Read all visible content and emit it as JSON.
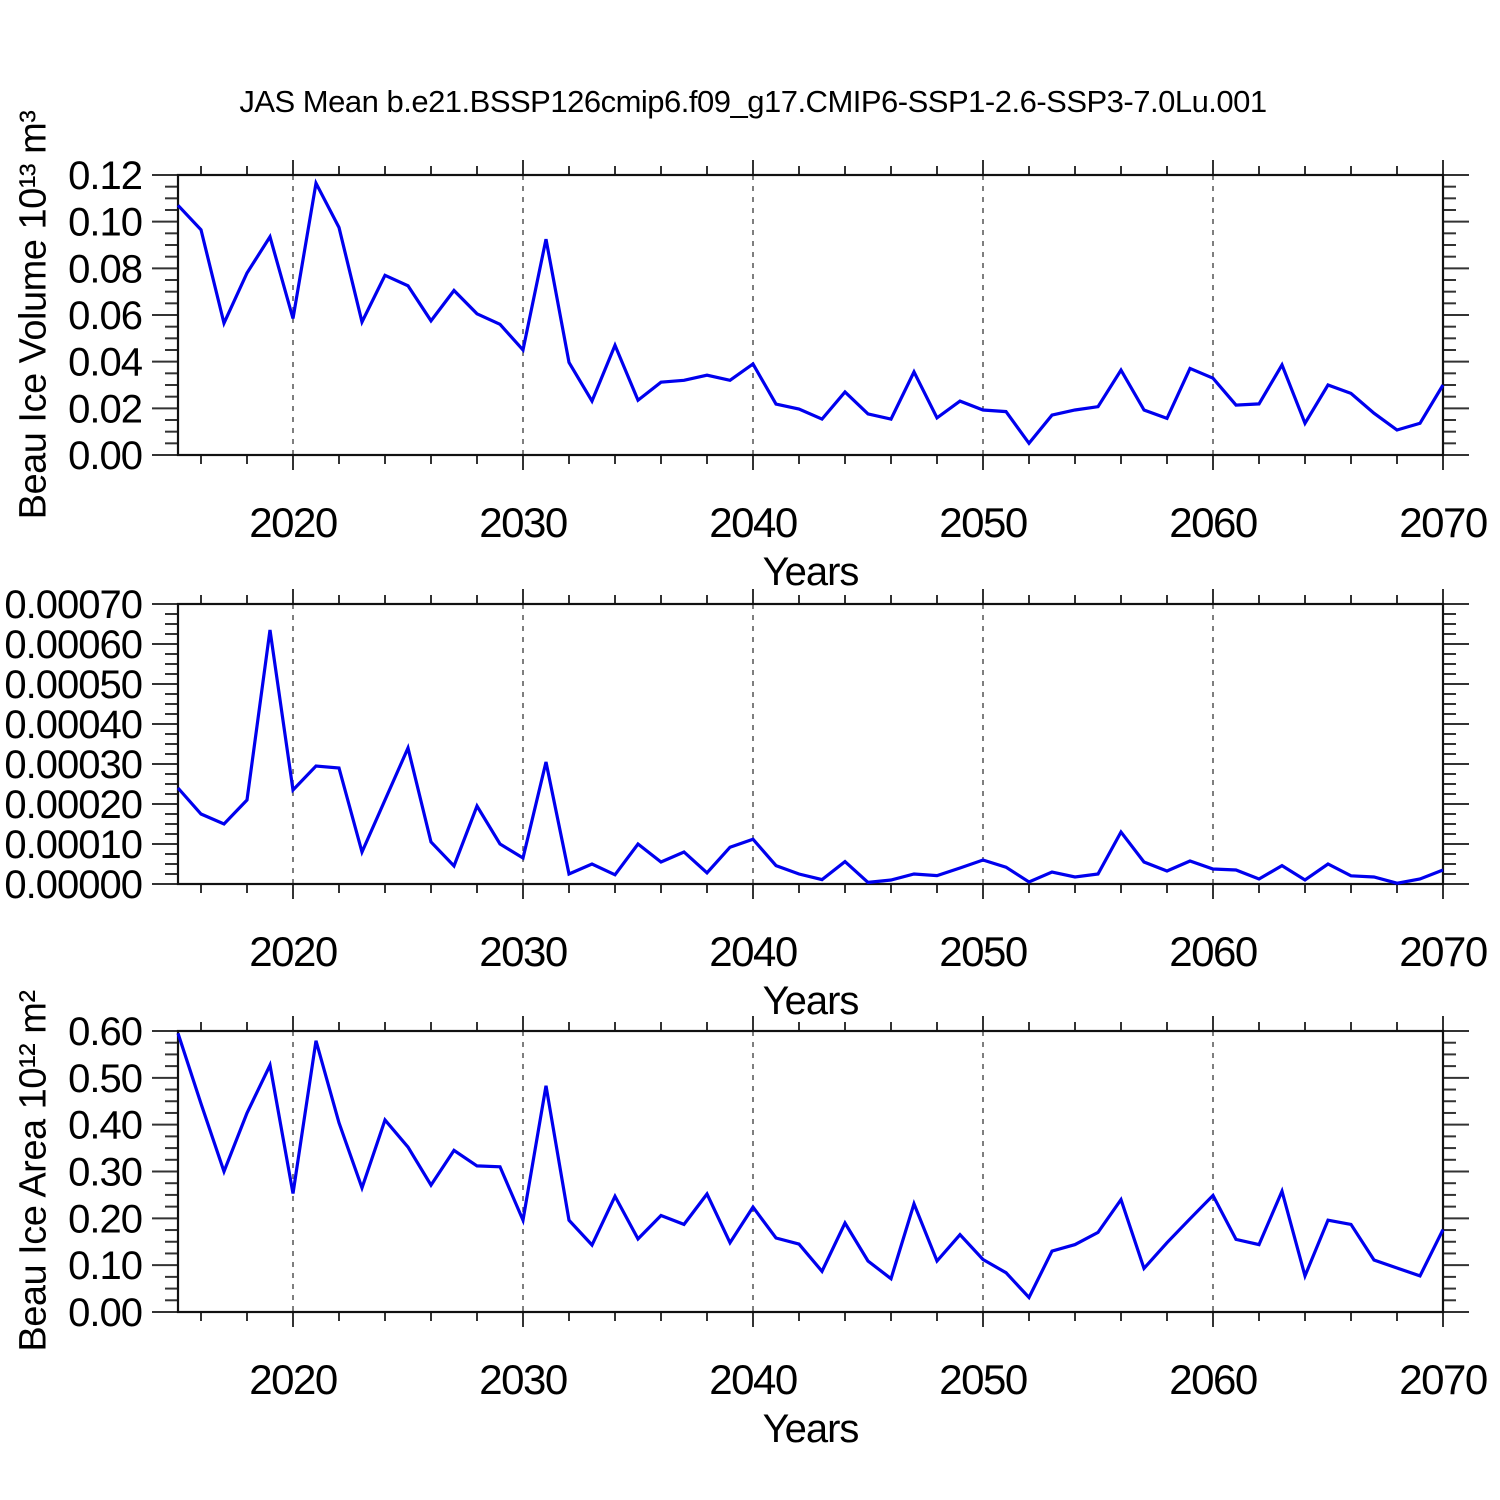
{
  "title": "JAS Mean b.e21.BSSP126cmip6.f09_g17.CMIP6-SSP1-2.6-SSP3-7.0Lu.001",
  "chart_data": {
    "type": "line",
    "title": "JAS Mean b.e21.BSSP126cmip6.f09_g17.CMIP6-SSP1-2.6-SSP3-7.0Lu.001",
    "line_color": "#0000ee",
    "gridline_color": "#555555",
    "grid": "vertical-dashed-at-decades",
    "legend_position": "none",
    "x": {
      "start": 2015,
      "end": 2070,
      "ticks": [
        2020,
        2030,
        2040,
        2050,
        2060,
        2070
      ],
      "tick_labels": [
        "2020",
        "2030",
        "2040",
        "2050",
        "2060",
        "2070"
      ],
      "minor_step": 2,
      "gridlines": [
        2020,
        2030,
        2040,
        2050,
        2060
      ]
    },
    "panels": [
      {
        "name": "beau-ice-volume",
        "ylabel": "Beau Ice Volume 10¹³ m³",
        "xlabel": "Years",
        "ylim": [
          0,
          0.12
        ],
        "ytick_step": 0.02,
        "ytick_labels": [
          "0.00",
          "0.02",
          "0.04",
          "0.06",
          "0.08",
          "0.10",
          "0.12"
        ],
        "values": [
          0.107,
          0.0965,
          0.0565,
          0.078,
          0.0935,
          0.0585,
          0.1165,
          0.0975,
          0.057,
          0.077,
          0.0725,
          0.0575,
          0.0705,
          0.0605,
          0.056,
          0.045,
          0.0925,
          0.0397,
          0.0231,
          0.047,
          0.0235,
          0.0312,
          0.032,
          0.0342,
          0.032,
          0.039,
          0.0218,
          0.0197,
          0.0154,
          0.027,
          0.0176,
          0.0154,
          0.0356,
          0.0159,
          0.0231,
          0.0193,
          0.0186,
          0.005,
          0.0171,
          0.0193,
          0.0207,
          0.0364,
          0.0193,
          0.0157,
          0.0371,
          0.0329,
          0.0214,
          0.0219,
          0.0386,
          0.0136,
          0.03,
          0.0264,
          0.0179,
          0.0107,
          0.0136,
          0.03
        ]
      },
      {
        "name": "beau-ice-middle-series",
        "ylabel": "",
        "xlabel": "Years",
        "ylim": [
          0,
          0.0007
        ],
        "ytick_step": 0.0001,
        "ytick_labels": [
          "0.00000",
          "0.00010",
          "0.00020",
          "0.00030",
          "0.00040",
          "0.00050",
          "0.00060",
          "0.00070"
        ],
        "values": [
          0.00024,
          0.000175,
          0.00015,
          0.00021,
          0.000635,
          0.000235,
          0.000295,
          0.00029,
          8e-05,
          0.00021,
          0.00034,
          0.000105,
          4.5e-05,
          0.000195,
          0.0001,
          6.5e-05,
          0.000305,
          2.5e-05,
          5e-05,
          2.3e-05,
          0.0001,
          5.5e-05,
          8e-05,
          2.8e-05,
          9.2e-05,
          0.000112,
          4.6e-05,
          2.5e-05,
          1.1e-05,
          5.6e-05,
          4e-06,
          1e-05,
          2.5e-05,
          2.1e-05,
          4e-05,
          6e-05,
          4.2e-05,
          5e-06,
          3e-05,
          1.75e-05,
          2.5e-05,
          0.00013,
          5.5e-05,
          3.25e-05,
          5.75e-05,
          3.75e-05,
          3.5e-05,
          1.25e-05,
          4.6e-05,
          1e-05,
          5e-05,
          2.05e-05,
          1.75e-05,
          2e-06,
          1.25e-05,
          3.5e-05
        ]
      },
      {
        "name": "beau-ice-area",
        "ylabel": "Beau Ice Area 10¹² m²",
        "xlabel": "Years",
        "ylim": [
          0,
          0.6
        ],
        "ytick_step": 0.1,
        "ytick_labels": [
          "0.00",
          "0.10",
          "0.20",
          "0.30",
          "0.40",
          "0.50",
          "0.60"
        ],
        "values": [
          0.595,
          0.445,
          0.3,
          0.425,
          0.527,
          0.253,
          0.579,
          0.404,
          0.265,
          0.41,
          0.352,
          0.271,
          0.345,
          0.312,
          0.31,
          0.196,
          0.483,
          0.196,
          0.143,
          0.247,
          0.156,
          0.206,
          0.187,
          0.252,
          0.148,
          0.224,
          0.158,
          0.145,
          0.087,
          0.19,
          0.109,
          0.071,
          0.231,
          0.109,
          0.165,
          0.112,
          0.084,
          0.031,
          0.13,
          0.144,
          0.17,
          0.24,
          0.093,
          0.148,
          0.199,
          0.249,
          0.155,
          0.144,
          0.258,
          0.077,
          0.196,
          0.187,
          0.111,
          0.094,
          0.077,
          0.176
        ]
      }
    ]
  }
}
